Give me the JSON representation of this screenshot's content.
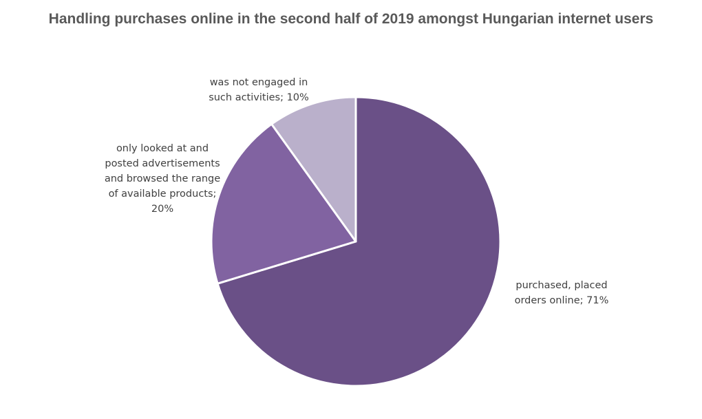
{
  "chart_data": {
    "type": "pie",
    "title": "Handling purchases online in the second half of 2019 amongst Hungarian internet users",
    "categories": [
      "purchased, placed orders online",
      "only looked at and posted advertisements and browsed the range of available products",
      "was not engaged in such activities"
    ],
    "values": [
      71,
      20,
      10
    ],
    "unit": "%",
    "legend": "none",
    "colors": [
      "#6a5087",
      "#8163a1",
      "#bab0cb"
    ],
    "data_labels": [
      "purchased, placed\norders online; 71%",
      "only looked at and\nposted advertisements\nand browsed the range\nof available products;\n20%",
      "was not engaged in\nsuch activities; 10%"
    ]
  }
}
